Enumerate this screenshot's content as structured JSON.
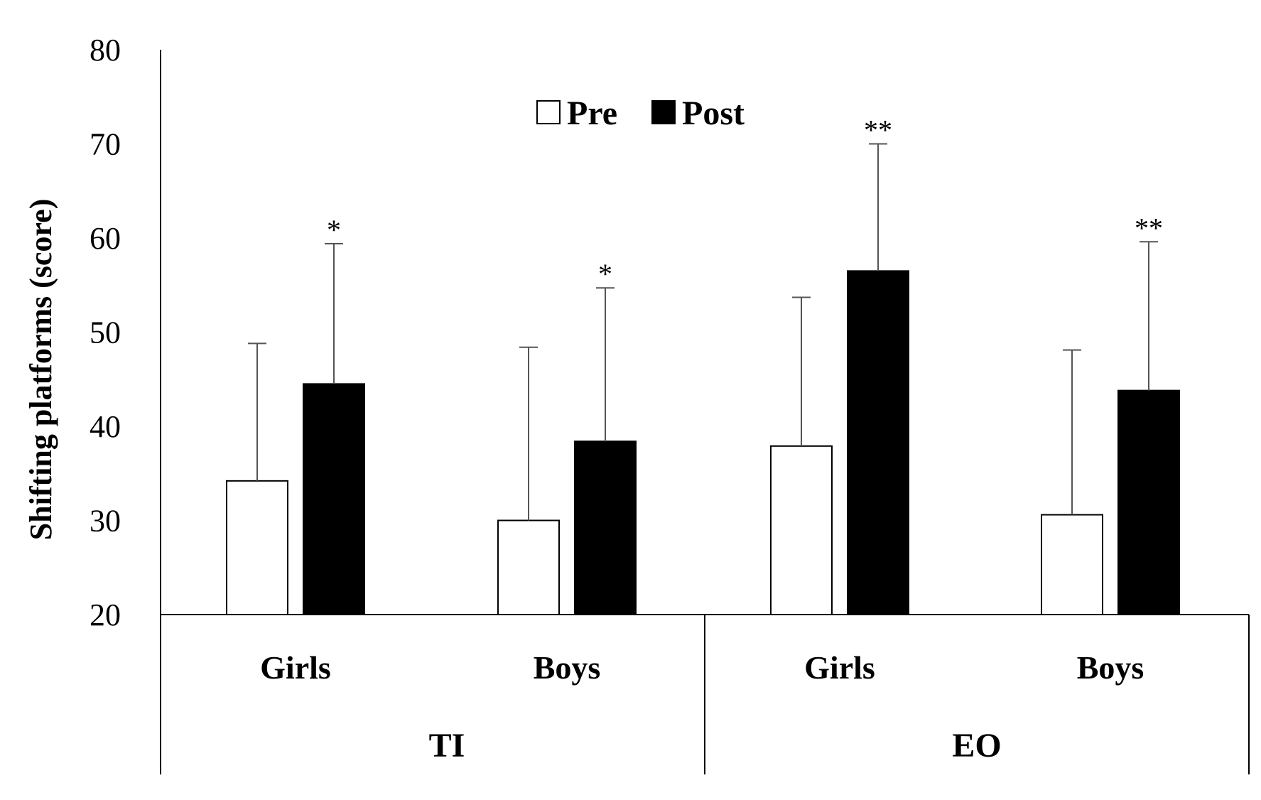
{
  "chart_data": {
    "type": "bar",
    "title": "",
    "xlabel": "",
    "ylabel": "Shifting platforms (score)",
    "ylim": [
      20,
      80
    ],
    "yticks": [
      20,
      30,
      40,
      50,
      60,
      70,
      80
    ],
    "grid": false,
    "legend_position": "top-center",
    "groups": [
      {
        "label": "TI",
        "categories": [
          "Girls",
          "Boys"
        ]
      },
      {
        "label": "EO",
        "categories": [
          "Girls",
          "Boys"
        ]
      }
    ],
    "categories": [
      "Girls",
      "Boys",
      "Girls",
      "Boys"
    ],
    "series": [
      {
        "name": "Pre",
        "fill": "#ffffff",
        "values": [
          34.2,
          30.0,
          37.9,
          30.6
        ],
        "error": [
          14.6,
          18.4,
          15.8,
          17.5
        ]
      },
      {
        "name": "Post",
        "fill": "#000000",
        "values": [
          44.5,
          38.4,
          56.5,
          43.8
        ],
        "error": [
          14.9,
          16.3,
          13.5,
          15.8
        ]
      }
    ],
    "annotations": [
      "*",
      "*",
      "**",
      "**"
    ]
  }
}
